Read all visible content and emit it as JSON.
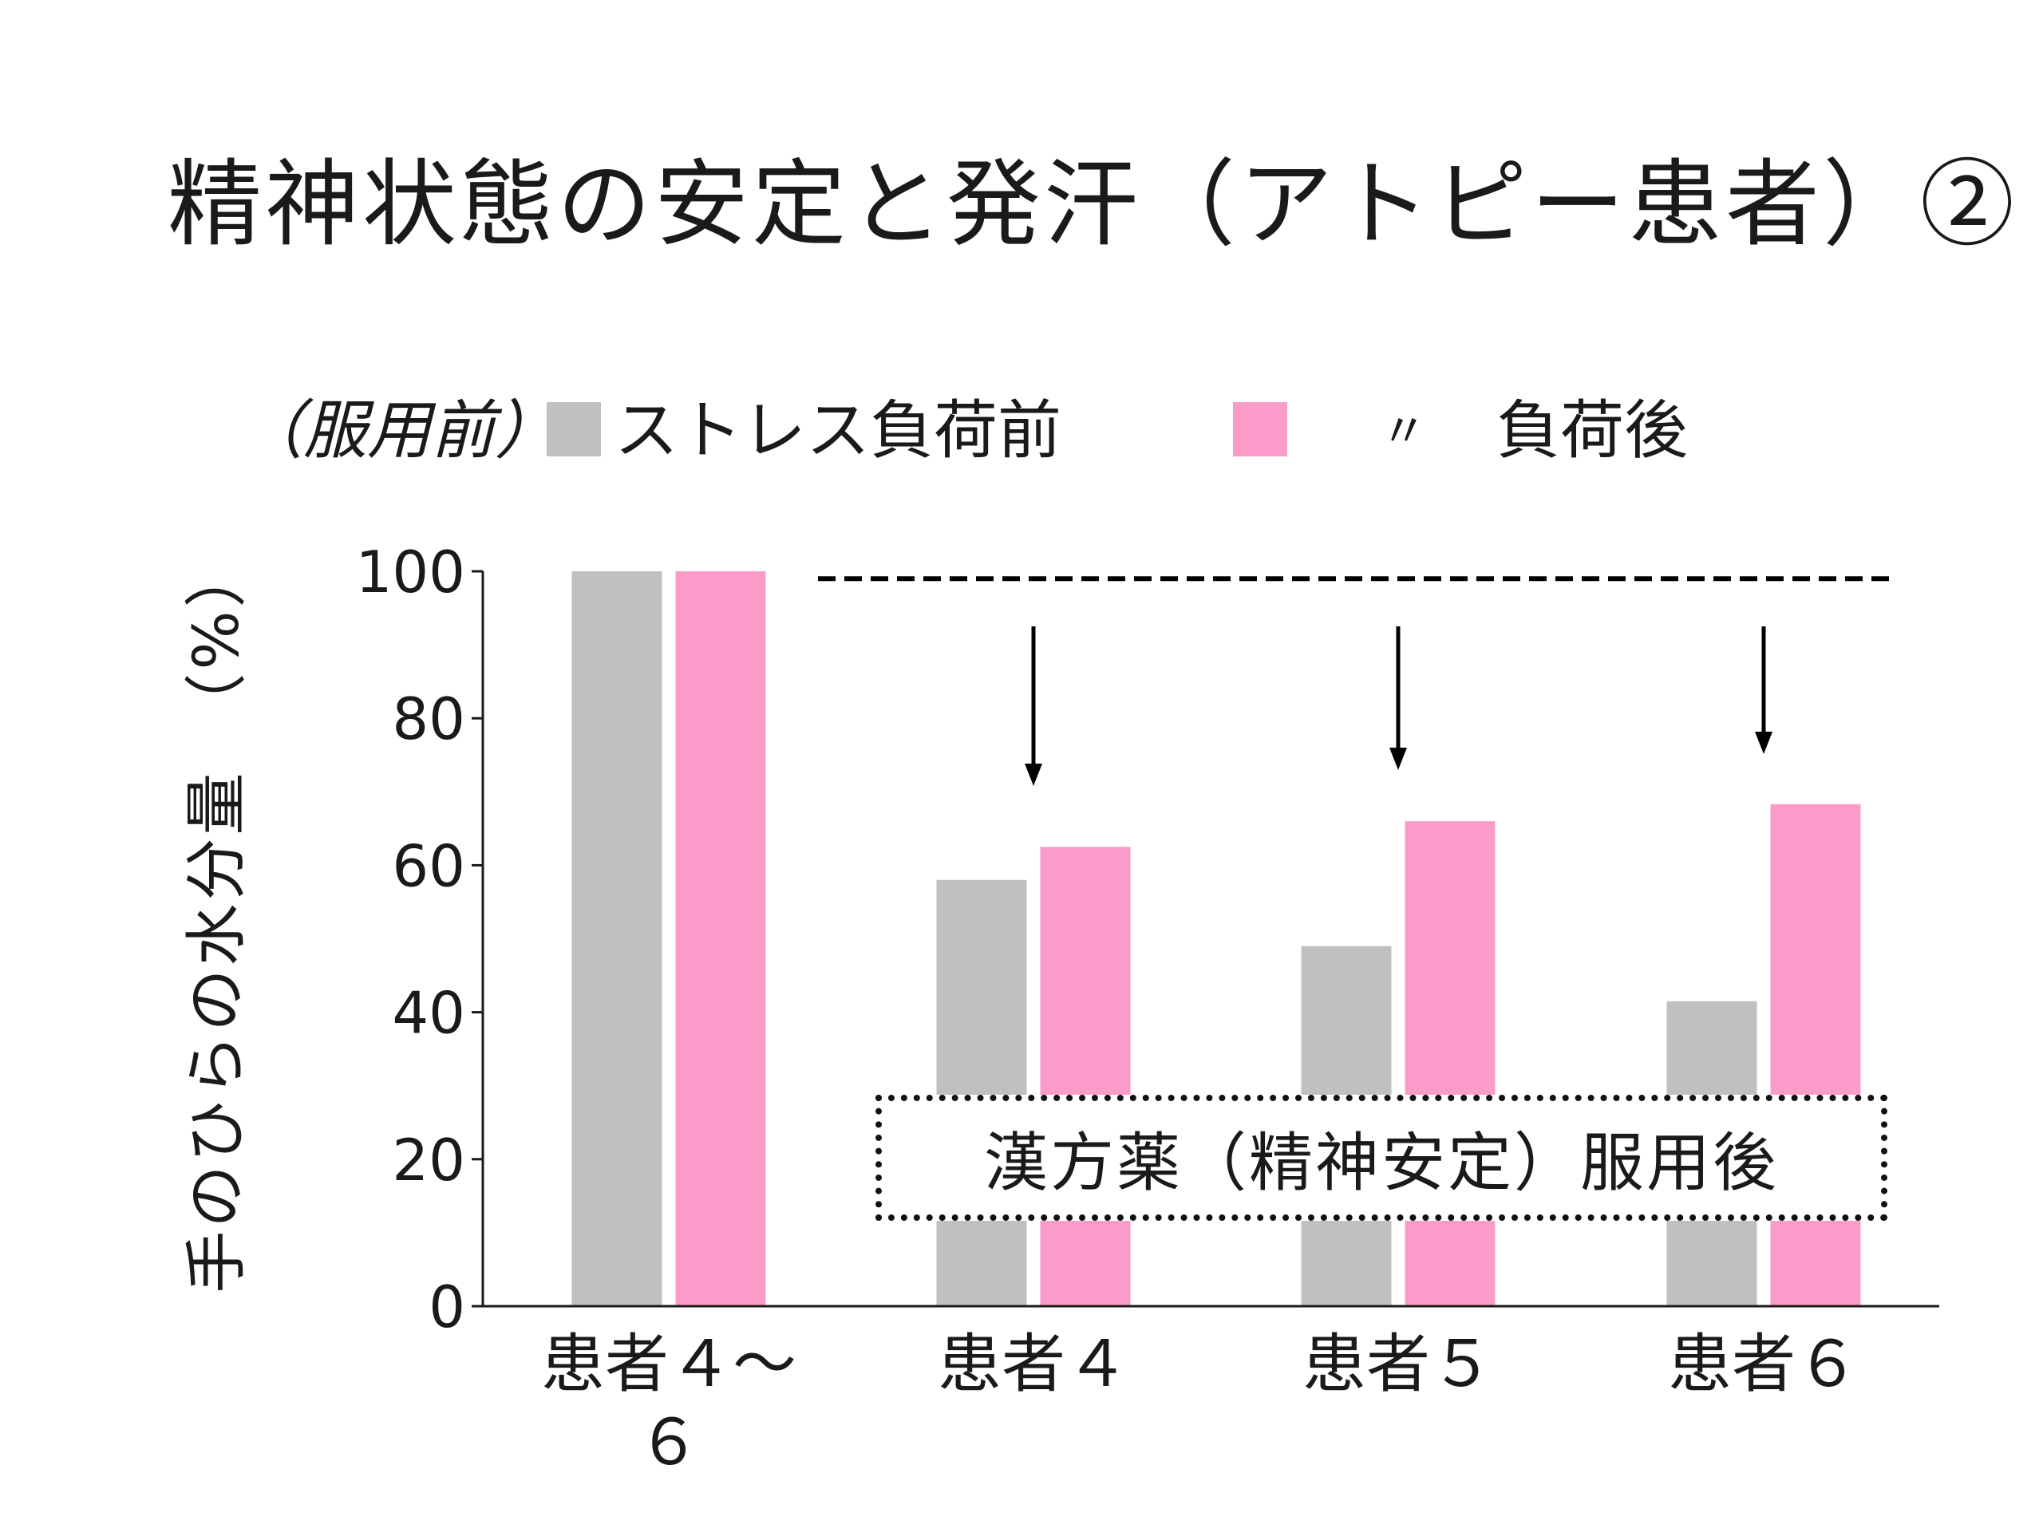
{
  "title": "精神状態の安定と発汗（アトピー患者）②",
  "colors": {
    "before": "#c0c0c0",
    "after": "#fb9bc9",
    "axis": "#1a1a1a"
  },
  "legend": {
    "prefix": "（服用前）",
    "before_label": "ストレス負荷前",
    "ditto": "〃",
    "after_label": "負荷後"
  },
  "callout": "漢方薬（精神安定）服用後",
  "chart_data": {
    "type": "bar",
    "categories": [
      "患者４～６",
      "患者４",
      "患者５",
      "患者６"
    ],
    "series": [
      {
        "name": "ストレス負荷前",
        "values": [
          100,
          58,
          49,
          41.5
        ]
      },
      {
        "name": "負荷後",
        "values": [
          100,
          62.5,
          66,
          68.3
        ]
      }
    ],
    "ylabel": "手のひらの水分量　（%）",
    "xlabel": "",
    "ylim": [
      0,
      100
    ],
    "yticks": [
      0,
      20,
      40,
      60,
      80,
      100
    ],
    "reference_line": {
      "value": 99,
      "style": "dashed"
    },
    "annotations": [
      "downward arrows above 患者４, 患者５, 患者６"
    ],
    "grid": false,
    "legend_position": "top"
  }
}
